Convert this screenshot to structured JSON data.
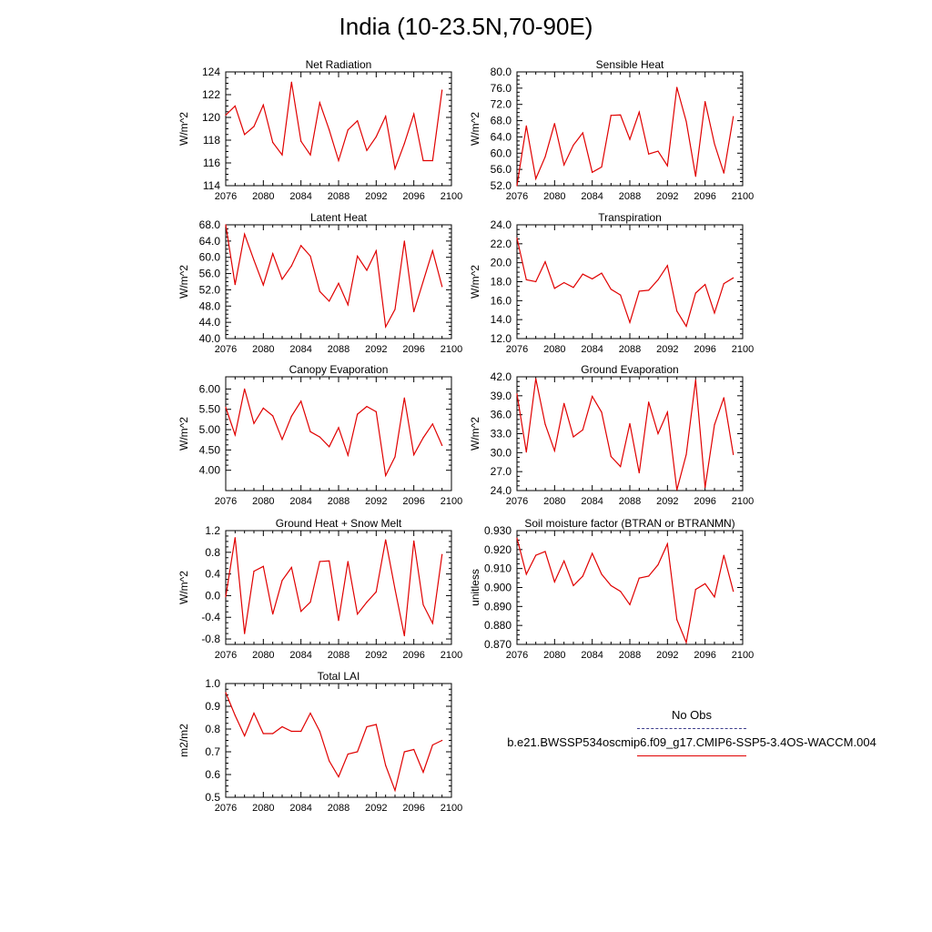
{
  "figure": {
    "title": "India (10-23.5N,70-90E)",
    "line_color": "#e00000",
    "obs_color": "#3c3c8c",
    "legend": {
      "obs_label": "No Obs",
      "model_label": "b.e21.BWSSP534oscmip6.f09_g17.CMIP6-SSP5-3.4OS-WACCM.004"
    }
  },
  "chart_data": [
    {
      "type": "line",
      "title": "Net Radiation",
      "ylabel": "W/m^2",
      "x": [
        2076,
        2077,
        2078,
        2079,
        2080,
        2081,
        2082,
        2083,
        2084,
        2085,
        2086,
        2087,
        2088,
        2089,
        2090,
        2091,
        2092,
        2093,
        2094,
        2095,
        2096,
        2097,
        2098,
        2099
      ],
      "values": [
        120.2,
        121.0,
        118.5,
        119.2,
        121.1,
        117.8,
        116.7,
        123.1,
        117.9,
        116.7,
        121.3,
        118.9,
        116.2,
        118.9,
        119.7,
        117.1,
        118.3,
        120.1,
        115.5,
        117.7,
        120.3,
        116.2,
        116.2,
        122.4
      ],
      "xlim": [
        2076,
        2100
      ],
      "ylim": [
        114,
        124
      ],
      "xticks": [
        "2076",
        "2080",
        "2084",
        "2088",
        "2092",
        "2096",
        "2100"
      ],
      "yticks": [
        "114",
        "116",
        "118",
        "120",
        "122",
        "124"
      ]
    },
    {
      "type": "line",
      "title": "Sensible Heat",
      "ylabel": "W/m^2",
      "x": [
        2076,
        2077,
        2078,
        2079,
        2080,
        2081,
        2082,
        2083,
        2084,
        2085,
        2086,
        2087,
        2088,
        2089,
        2090,
        2091,
        2092,
        2093,
        2094,
        2095,
        2096,
        2097,
        2098,
        2099
      ],
      "values": [
        52.0,
        66.7,
        53.7,
        59.1,
        67.3,
        57.1,
        62.0,
        65.0,
        55.3,
        56.6,
        69.3,
        69.4,
        63.4,
        70.1,
        59.8,
        60.5,
        56.9,
        76.2,
        67.8,
        54.3,
        72.7,
        62.3,
        55.1,
        69.0
      ],
      "xlim": [
        2076,
        2100
      ],
      "ylim": [
        52,
        80
      ],
      "xticks": [
        "2076",
        "2080",
        "2084",
        "2088",
        "2092",
        "2096",
        "2100"
      ],
      "yticks": [
        "52.0",
        "56.0",
        "60.0",
        "64.0",
        "68.0",
        "72.0",
        "76.0",
        "80.0"
      ]
    },
    {
      "type": "line",
      "title": "Latent Heat",
      "ylabel": "W/m^2",
      "x": [
        2076,
        2077,
        2078,
        2079,
        2080,
        2081,
        2082,
        2083,
        2084,
        2085,
        2086,
        2087,
        2088,
        2089,
        2090,
        2091,
        2092,
        2093,
        2094,
        2095,
        2096,
        2097,
        2098,
        2099
      ],
      "values": [
        68.0,
        53.3,
        65.7,
        59.3,
        53.2,
        60.9,
        54.6,
        57.9,
        62.9,
        60.3,
        51.6,
        49.2,
        53.6,
        48.3,
        60.3,
        56.8,
        61.6,
        42.9,
        47.2,
        64.0,
        46.6,
        54.1,
        61.6,
        52.8
      ],
      "xlim": [
        2076,
        2100
      ],
      "ylim": [
        40,
        68
      ],
      "xticks": [
        "2076",
        "2080",
        "2084",
        "2088",
        "2092",
        "2096",
        "2100"
      ],
      "yticks": [
        "40.0",
        "44.0",
        "48.0",
        "52.0",
        "56.0",
        "60.0",
        "64.0",
        "68.0"
      ]
    },
    {
      "type": "line",
      "title": "Transpiration",
      "ylabel": "W/m^2",
      "x": [
        2076,
        2077,
        2078,
        2079,
        2080,
        2081,
        2082,
        2083,
        2084,
        2085,
        2086,
        2087,
        2088,
        2089,
        2090,
        2091,
        2092,
        2093,
        2094,
        2095,
        2096,
        2097,
        2098,
        2099
      ],
      "values": [
        22.6,
        18.2,
        18.0,
        20.1,
        17.3,
        17.9,
        17.4,
        18.8,
        18.3,
        18.9,
        17.2,
        16.6,
        13.7,
        17.0,
        17.1,
        18.2,
        19.7,
        14.9,
        13.3,
        16.8,
        17.7,
        14.7,
        17.8,
        18.4
      ],
      "xlim": [
        2076,
        2100
      ],
      "ylim": [
        12,
        24
      ],
      "xticks": [
        "2076",
        "2080",
        "2084",
        "2088",
        "2092",
        "2096",
        "2100"
      ],
      "yticks": [
        "12.0",
        "14.0",
        "16.0",
        "18.0",
        "20.0",
        "22.0",
        "24.0"
      ]
    },
    {
      "type": "line",
      "title": "Canopy Evaporation",
      "ylabel": "W/m^2",
      "x": [
        2076,
        2077,
        2078,
        2079,
        2080,
        2081,
        2082,
        2083,
        2084,
        2085,
        2086,
        2087,
        2088,
        2089,
        2090,
        2091,
        2092,
        2093,
        2094,
        2095,
        2096,
        2097,
        2098,
        2099
      ],
      "values": [
        5.55,
        4.87,
        6.0,
        5.15,
        5.53,
        5.34,
        4.76,
        5.33,
        5.7,
        4.95,
        4.82,
        4.58,
        5.05,
        4.37,
        5.38,
        5.57,
        5.44,
        3.87,
        4.33,
        5.78,
        4.38,
        4.8,
        5.14,
        4.61
      ],
      "xlim": [
        2076,
        2100
      ],
      "ylim": [
        3.5,
        6.3
      ],
      "xticks": [
        "2076",
        "2080",
        "2084",
        "2088",
        "2092",
        "2096",
        "2100"
      ],
      "yticks": [
        "4.00",
        "4.50",
        "5.00",
        "5.50",
        "6.00"
      ]
    },
    {
      "type": "line",
      "title": "Ground Evaporation",
      "ylabel": "W/m^2",
      "x": [
        2076,
        2077,
        2078,
        2079,
        2080,
        2081,
        2082,
        2083,
        2084,
        2085,
        2086,
        2087,
        2088,
        2089,
        2090,
        2091,
        2092,
        2093,
        2094,
        2095,
        2096,
        2097,
        2098,
        2099
      ],
      "values": [
        39.3,
        30.1,
        41.7,
        34.5,
        30.3,
        37.8,
        32.5,
        33.6,
        38.9,
        36.4,
        29.4,
        27.8,
        34.6,
        26.8,
        38.0,
        33.0,
        36.4,
        24.1,
        29.7,
        41.5,
        24.5,
        34.4,
        38.7,
        29.7
      ],
      "xlim": [
        2076,
        2100
      ],
      "ylim": [
        24,
        42
      ],
      "xticks": [
        "2076",
        "2080",
        "2084",
        "2088",
        "2092",
        "2096",
        "2100"
      ],
      "yticks": [
        "24.0",
        "27.0",
        "30.0",
        "33.0",
        "36.0",
        "39.0",
        "42.0"
      ]
    },
    {
      "type": "line",
      "title": "Ground Heat + Snow Melt",
      "ylabel": "W/m^2",
      "x": [
        2076,
        2077,
        2078,
        2079,
        2080,
        2081,
        2082,
        2083,
        2084,
        2085,
        2086,
        2087,
        2088,
        2089,
        2090,
        2091,
        2092,
        2093,
        2094,
        2095,
        2096,
        2097,
        2098,
        2099
      ],
      "values": [
        -0.02,
        1.07,
        -0.7,
        0.45,
        0.54,
        -0.34,
        0.28,
        0.52,
        -0.29,
        -0.12,
        0.63,
        0.64,
        -0.46,
        0.63,
        -0.34,
        -0.12,
        0.07,
        1.03,
        0.12,
        -0.74,
        1.01,
        -0.17,
        -0.51,
        0.76
      ],
      "xlim": [
        2076,
        2100
      ],
      "ylim": [
        -0.9,
        1.2
      ],
      "xticks": [
        "2076",
        "2080",
        "2084",
        "2088",
        "2092",
        "2096",
        "2100"
      ],
      "yticks": [
        "-0.8",
        "-0.4",
        "0.0",
        "0.4",
        "0.8",
        "1.2"
      ]
    },
    {
      "type": "line",
      "title": "Soil moisture factor (BTRAN or BTRANMN)",
      "ylabel": "unitless",
      "x": [
        2076,
        2077,
        2078,
        2079,
        2080,
        2081,
        2082,
        2083,
        2084,
        2085,
        2086,
        2087,
        2088,
        2089,
        2090,
        2091,
        2092,
        2093,
        2094,
        2095,
        2096,
        2097,
        2098,
        2099
      ],
      "values": [
        0.926,
        0.907,
        0.917,
        0.919,
        0.903,
        0.914,
        0.901,
        0.906,
        0.918,
        0.907,
        0.901,
        0.898,
        0.891,
        0.905,
        0.906,
        0.912,
        0.923,
        0.883,
        0.871,
        0.899,
        0.902,
        0.895,
        0.917,
        0.898
      ],
      "xlim": [
        2076,
        2100
      ],
      "ylim": [
        0.87,
        0.93
      ],
      "xticks": [
        "2076",
        "2080",
        "2084",
        "2088",
        "2092",
        "2096",
        "2100"
      ],
      "yticks": [
        "0.870",
        "0.880",
        "0.890",
        "0.900",
        "0.910",
        "0.920",
        "0.930"
      ]
    },
    {
      "type": "line",
      "title": "Total LAI",
      "ylabel": "m2/m2",
      "x": [
        2076,
        2077,
        2078,
        2079,
        2080,
        2081,
        2082,
        2083,
        2084,
        2085,
        2086,
        2087,
        2088,
        2089,
        2090,
        2091,
        2092,
        2093,
        2094,
        2095,
        2096,
        2097,
        2098,
        2099
      ],
      "values": [
        0.96,
        0.86,
        0.77,
        0.87,
        0.78,
        0.78,
        0.81,
        0.79,
        0.79,
        0.87,
        0.79,
        0.66,
        0.59,
        0.69,
        0.7,
        0.81,
        0.82,
        0.64,
        0.53,
        0.7,
        0.71,
        0.61,
        0.73,
        0.75
      ],
      "xlim": [
        2076,
        2100
      ],
      "ylim": [
        0.5,
        1.0
      ],
      "xticks": [
        "2076",
        "2080",
        "2084",
        "2088",
        "2092",
        "2096",
        "2100"
      ],
      "yticks": [
        "0.5",
        "0.6",
        "0.7",
        "0.8",
        "0.9",
        "1.0"
      ]
    }
  ]
}
